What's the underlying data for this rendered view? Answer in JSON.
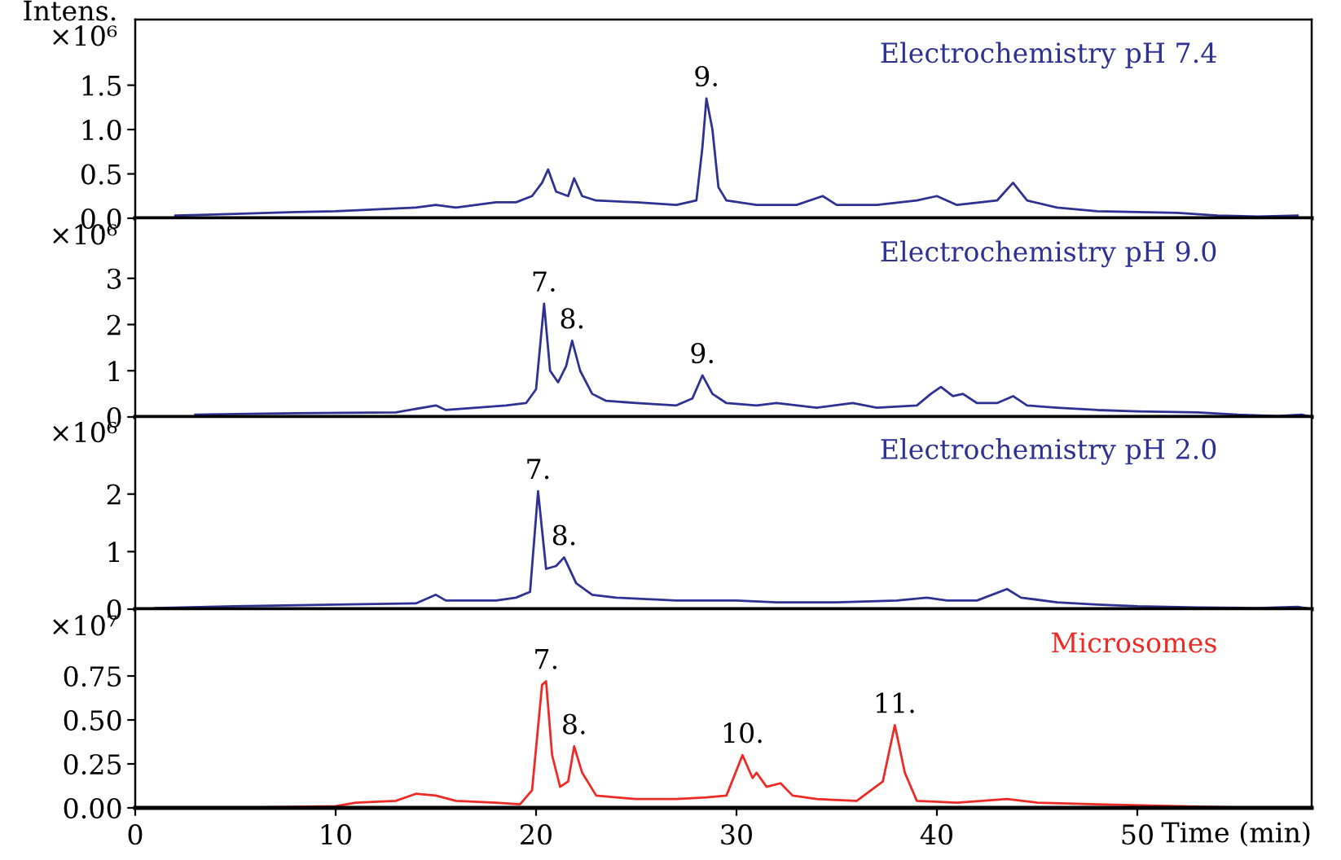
{
  "chart_data": [
    {
      "type": "line",
      "ylabel": "Intens.\n×10⁶",
      "annotations": [
        {
          "text": "9.",
          "x": 28.5,
          "y": 1.35
        }
      ],
      "xlim": [
        0,
        58.7
      ],
      "ylim": [
        0,
        2.24
      ],
      "yticks": [
        {
          "value": 0,
          "label": "0.0"
        },
        {
          "value": 0.5,
          "label": "0.5"
        },
        {
          "value": 1.0,
          "label": "1.0"
        },
        {
          "value": 1.5,
          "label": "1.5"
        }
      ],
      "tick_labels": "y",
      "legend": false,
      "grid": false,
      "series": [
        {
          "name": "Electrochemistry pH 7.4",
          "color": "#2e3192",
          "x": [
            2,
            5,
            8,
            10,
            12,
            14,
            15,
            16,
            17,
            18,
            19,
            19.8,
            20.3,
            20.6,
            21,
            21.6,
            21.9,
            22.3,
            23,
            25,
            27,
            28,
            28.3,
            28.5,
            28.8,
            29.1,
            29.5,
            31,
            33,
            34.3,
            35,
            37,
            39,
            40,
            41,
            43,
            43.8,
            44.5,
            46,
            48,
            50,
            52,
            54,
            56,
            58
          ],
          "values": [
            0.03,
            0.05,
            0.07,
            0.08,
            0.1,
            0.12,
            0.15,
            0.12,
            0.15,
            0.18,
            0.18,
            0.25,
            0.4,
            0.55,
            0.3,
            0.25,
            0.45,
            0.25,
            0.2,
            0.18,
            0.15,
            0.2,
            0.8,
            1.35,
            1.0,
            0.35,
            0.2,
            0.15,
            0.15,
            0.25,
            0.15,
            0.15,
            0.2,
            0.25,
            0.15,
            0.2,
            0.4,
            0.2,
            0.12,
            0.08,
            0.07,
            0.06,
            0.03,
            0.02,
            0.03
          ]
        }
      ]
    },
    {
      "type": "line",
      "ylabel": "×10⁶",
      "annotations": [
        {
          "text": "7.",
          "x": 20.4,
          "y": 2.45
        },
        {
          "text": "8.",
          "x": 21.8,
          "y": 1.65
        },
        {
          "text": "9.",
          "x": 28.3,
          "y": 0.9
        }
      ],
      "xlim": [
        0,
        58.7
      ],
      "ylim": [
        0,
        4.3
      ],
      "yticks": [
        0,
        1,
        2,
        3
      ],
      "tick_labels": "y",
      "legend": false,
      "grid": false,
      "series": [
        {
          "name": "Electrochemistry pH 9.0",
          "color": "#2e3192",
          "x": [
            3,
            8,
            13,
            15,
            15.5,
            17,
            18.5,
            19.5,
            20,
            20.4,
            20.7,
            21.1,
            21.5,
            21.8,
            22.2,
            22.8,
            23.5,
            25,
            27,
            27.8,
            28.3,
            28.8,
            29.5,
            31,
            32,
            34,
            35.8,
            37,
            39,
            39.7,
            40.2,
            40.8,
            41.3,
            42,
            43,
            43.8,
            44.5,
            46,
            48,
            50,
            53,
            55,
            57,
            58.2,
            58.7
          ],
          "values": [
            0.05,
            0.08,
            0.1,
            0.25,
            0.15,
            0.2,
            0.25,
            0.3,
            0.6,
            2.45,
            1.0,
            0.75,
            1.1,
            1.65,
            1.0,
            0.5,
            0.35,
            0.3,
            0.25,
            0.4,
            0.9,
            0.5,
            0.3,
            0.25,
            0.3,
            0.2,
            0.3,
            0.2,
            0.25,
            0.5,
            0.65,
            0.45,
            0.5,
            0.3,
            0.3,
            0.45,
            0.25,
            0.2,
            0.15,
            0.12,
            0.1,
            0.05,
            0.02,
            0.05,
            0
          ]
        }
      ]
    },
    {
      "type": "line",
      "ylabel": "×10⁶",
      "annotations": [
        {
          "text": "7.",
          "x": 20.1,
          "y": 2.05
        },
        {
          "text": "8.",
          "x": 21.4,
          "y": 0.9
        }
      ],
      "xlim": [
        0,
        58.7
      ],
      "ylim": [
        0,
        3.34
      ],
      "yticks": [
        0,
        1,
        2
      ],
      "tick_labels": "y",
      "legend": false,
      "grid": false,
      "series": [
        {
          "name": "Electrochemistry pH 2.0",
          "color": "#2e3192",
          "x": [
            1,
            5,
            10,
            14,
            15,
            15.5,
            18,
            19,
            19.7,
            20.1,
            20.5,
            21,
            21.4,
            22,
            22.8,
            24,
            27,
            30,
            32,
            35,
            38,
            39.5,
            40.5,
            42,
            43.5,
            44.2,
            46,
            48,
            50,
            53,
            56,
            58,
            58.7
          ],
          "values": [
            0.02,
            0.05,
            0.08,
            0.1,
            0.25,
            0.15,
            0.15,
            0.2,
            0.3,
            2.05,
            0.7,
            0.75,
            0.9,
            0.45,
            0.25,
            0.2,
            0.15,
            0.15,
            0.12,
            0.12,
            0.15,
            0.2,
            0.15,
            0.15,
            0.35,
            0.2,
            0.12,
            0.08,
            0.05,
            0.03,
            0.02,
            0.04,
            0
          ]
        }
      ]
    },
    {
      "type": "line",
      "xlabel": "Time (min)",
      "ylabel": "×10⁷",
      "annotations": [
        {
          "text": "7.",
          "x": 20.5,
          "y": 0.72
        },
        {
          "text": "8.",
          "x": 21.9,
          "y": 0.35
        },
        {
          "text": "10.",
          "x": 30.3,
          "y": 0.3
        },
        {
          "text": "11.",
          "x": 37.9,
          "y": 0.47
        }
      ],
      "xlim": [
        0,
        58.7
      ],
      "xticks": [
        0,
        10,
        20,
        30,
        40,
        50
      ],
      "ylim": [
        0,
        1.13
      ],
      "yticks": [
        {
          "value": 0,
          "label": "0.00"
        },
        {
          "value": 0.25,
          "label": "0.25"
        },
        {
          "value": 0.5,
          "label": "0.50"
        },
        {
          "value": 0.75,
          "label": "0.75"
        }
      ],
      "legend": false,
      "grid": false,
      "series": [
        {
          "name": "Microsomes",
          "color": "#ee2a24",
          "x": [
            0,
            5,
            10,
            11,
            13,
            14,
            15,
            16,
            18,
            19.2,
            19.8,
            20.3,
            20.5,
            20.8,
            21.2,
            21.6,
            21.9,
            22.3,
            23,
            24,
            25,
            27,
            28.5,
            29.5,
            30.3,
            30.8,
            31,
            31.5,
            32.2,
            32.8,
            34,
            36,
            37.3,
            37.9,
            38.4,
            39,
            41,
            43.5,
            45,
            48,
            52,
            56,
            58.7
          ],
          "values": [
            0,
            0,
            0.01,
            0.03,
            0.04,
            0.08,
            0.07,
            0.04,
            0.03,
            0.02,
            0.1,
            0.7,
            0.72,
            0.3,
            0.12,
            0.15,
            0.35,
            0.2,
            0.07,
            0.06,
            0.05,
            0.05,
            0.06,
            0.07,
            0.3,
            0.17,
            0.2,
            0.12,
            0.14,
            0.07,
            0.05,
            0.04,
            0.15,
            0.47,
            0.2,
            0.04,
            0.03,
            0.05,
            0.03,
            0.02,
            0.01,
            0,
            0
          ]
        }
      ]
    }
  ]
}
